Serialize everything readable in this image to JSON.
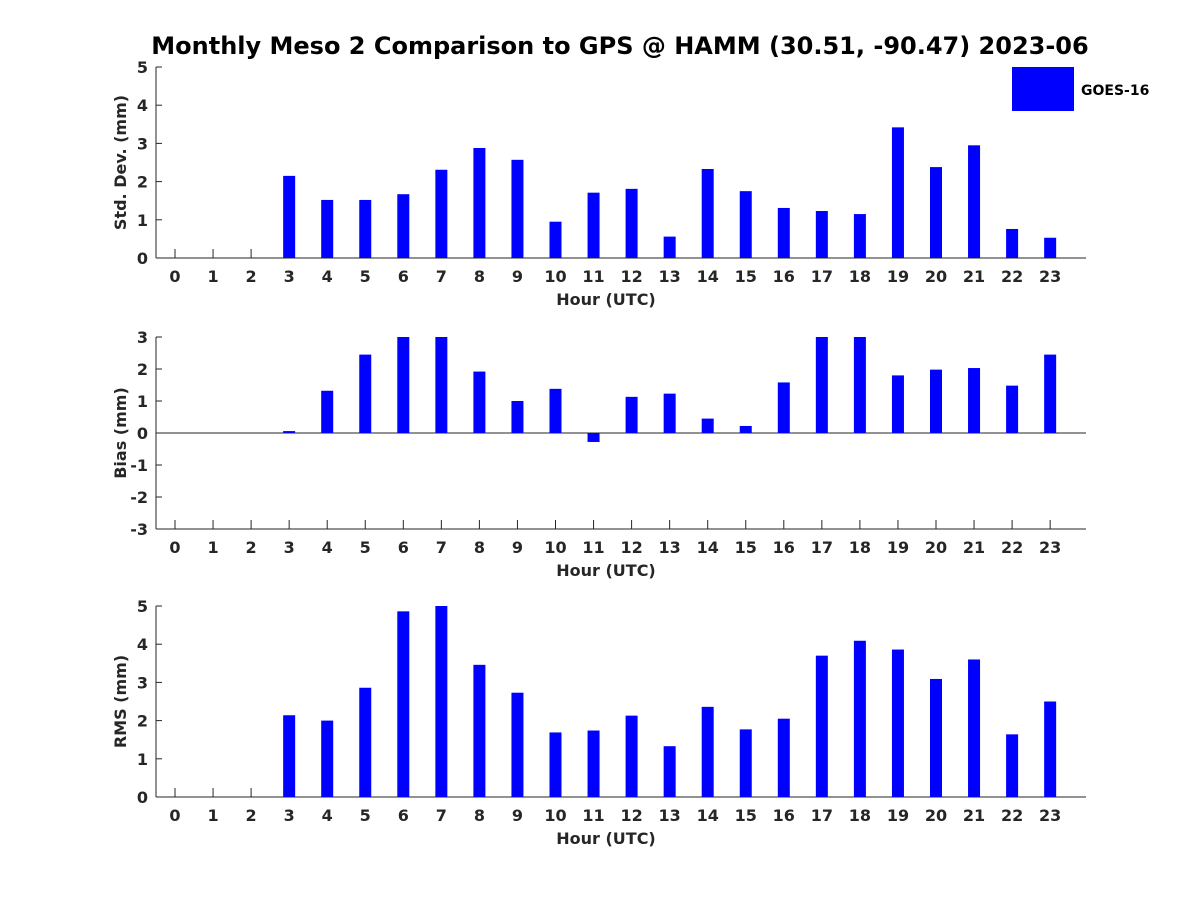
{
  "chart_data": {
    "title": "Monthly Meso 2 Comparison to GPS @ HAMM (30.51, -90.47) 2023-06",
    "legend": {
      "entries": [
        "GOES-16"
      ],
      "placement": "top-right",
      "color": "#0000ff"
    },
    "panels": [
      {
        "type": "bar",
        "ylabel": "Std. Dev. (mm)",
        "xlabel": "Hour (UTC)",
        "ylim": [
          0,
          5
        ],
        "yticks": [
          "0",
          "1",
          "2",
          "3",
          "4",
          "5"
        ],
        "categories": [
          "0",
          "1",
          "2",
          "3",
          "4",
          "5",
          "6",
          "7",
          "8",
          "9",
          "10",
          "11",
          "12",
          "13",
          "14",
          "15",
          "16",
          "17",
          "18",
          "19",
          "20",
          "21",
          "22",
          "23"
        ],
        "series": [
          {
            "name": "GOES-16",
            "values": [
              null,
              null,
              null,
              2.15,
              1.52,
              1.52,
              1.67,
              2.31,
              2.88,
              2.57,
              0.95,
              1.71,
              1.81,
              0.56,
              2.33,
              1.75,
              1.31,
              1.23,
              1.15,
              3.42,
              2.38,
              2.95,
              0.76,
              0.53
            ]
          }
        ],
        "color": "#0000ff"
      },
      {
        "type": "bar",
        "ylabel": "Bias (mm)",
        "xlabel": "Hour (UTC)",
        "ylim": [
          -3,
          3
        ],
        "yticks": [
          "-3",
          "-2",
          "-1",
          "0",
          "1",
          "2",
          "3"
        ],
        "categories": [
          "0",
          "1",
          "2",
          "3",
          "4",
          "5",
          "6",
          "7",
          "8",
          "9",
          "10",
          "11",
          "12",
          "13",
          "14",
          "15",
          "16",
          "17",
          "18",
          "19",
          "20",
          "21",
          "22",
          "23"
        ],
        "series": [
          {
            "name": "GOES-16",
            "values": [
              null,
              null,
              null,
              0.06,
              1.32,
              2.45,
              3.0,
              3.0,
              1.92,
              1.0,
              1.38,
              -0.28,
              1.13,
              1.23,
              0.45,
              0.22,
              1.58,
              3.0,
              3.0,
              1.8,
              1.98,
              2.03,
              1.48,
              2.45
            ]
          }
        ],
        "color": "#0000ff"
      },
      {
        "type": "bar",
        "ylabel": "RMS (mm)",
        "xlabel": "Hour (UTC)",
        "ylim": [
          0,
          5
        ],
        "yticks": [
          "0",
          "1",
          "2",
          "3",
          "4",
          "5"
        ],
        "categories": [
          "0",
          "1",
          "2",
          "3",
          "4",
          "5",
          "6",
          "7",
          "8",
          "9",
          "10",
          "11",
          "12",
          "13",
          "14",
          "15",
          "16",
          "17",
          "18",
          "19",
          "20",
          "21",
          "22",
          "23"
        ],
        "series": [
          {
            "name": "GOES-16",
            "values": [
              null,
              null,
              null,
              2.14,
              2.0,
              2.86,
              4.86,
              5.0,
              3.46,
              2.73,
              1.69,
              1.74,
              2.13,
              1.33,
              2.36,
              1.77,
              2.05,
              3.7,
              4.09,
              3.86,
              3.09,
              3.6,
              1.64,
              2.5
            ]
          }
        ],
        "color": "#0000ff"
      }
    ]
  }
}
